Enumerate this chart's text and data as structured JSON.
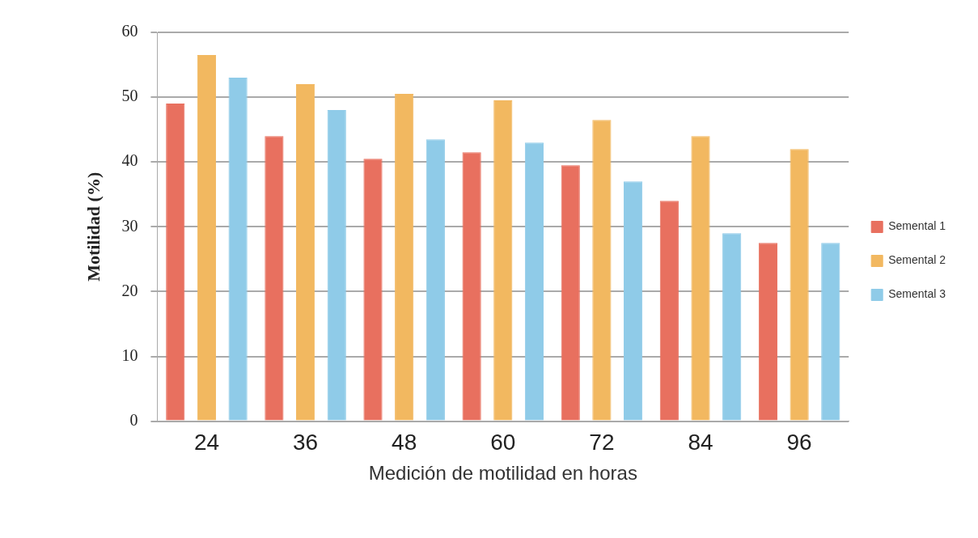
{
  "chart_data": {
    "type": "bar",
    "xlabel": "Medición de motilidad en horas",
    "ylabel": "Motilidad (%)",
    "categories": [
      "24",
      "36",
      "48",
      "60",
      "72",
      "84",
      "96"
    ],
    "series": [
      {
        "name": "Semental 1",
        "color": "#e8705f",
        "values": [
          49,
          44,
          40.5,
          41.5,
          39.5,
          34,
          27.5
        ]
      },
      {
        "name": "Semental 2",
        "color": "#f2b860",
        "values": [
          56.5,
          52,
          50.5,
          49.5,
          46.5,
          44,
          42
        ]
      },
      {
        "name": "Semental 3",
        "color": "#8fcbe8",
        "values": [
          53,
          48,
          43.5,
          43,
          37,
          29,
          27.5
        ]
      }
    ],
    "ylim": [
      0,
      60
    ],
    "yticks": [
      0,
      10,
      20,
      30,
      40,
      50,
      60
    ],
    "grid": "y",
    "legend": "right"
  }
}
